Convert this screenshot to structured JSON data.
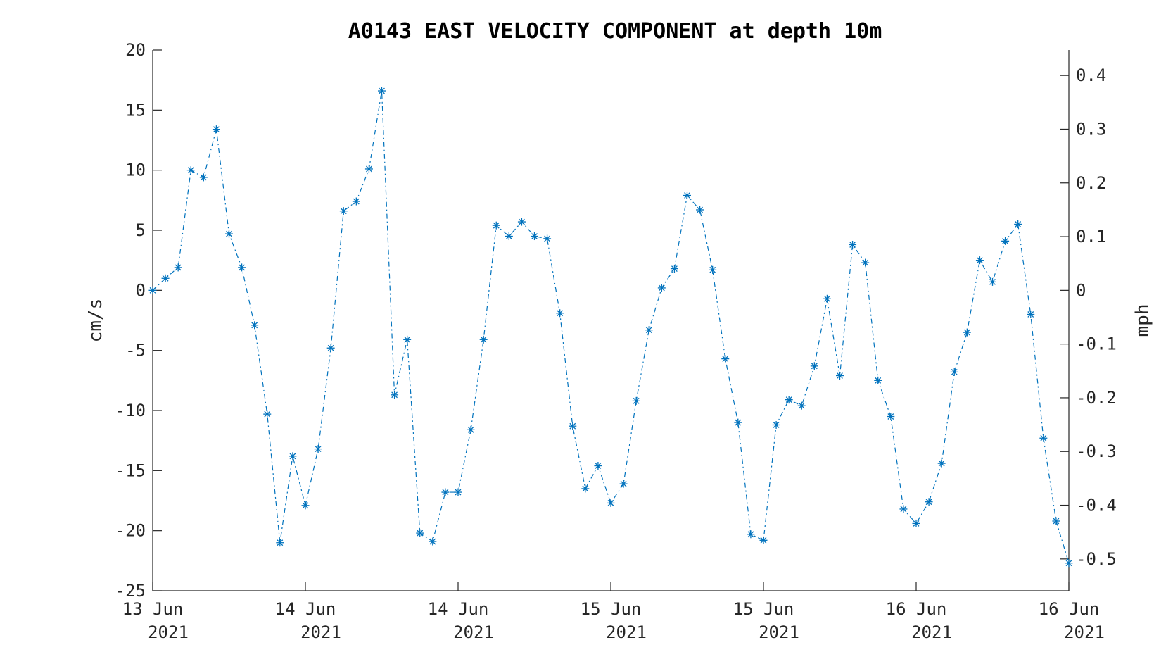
{
  "chart_data": {
    "type": "line",
    "title": "A0143 EAST VELOCITY COMPONENT at depth 10m",
    "ylabel": "cm/s",
    "ylabel_right": "mph",
    "ylim": [
      -25,
      20
    ],
    "ylim_right_mph": [
      -0.5592,
      0.4474
    ],
    "yticks": [
      "20",
      "15",
      "10",
      "5",
      "0",
      "-5",
      "-10",
      "-15",
      "-20",
      "-25"
    ],
    "yticks_right": [
      "0.4",
      "0.3",
      "0.2",
      "0.1",
      "0",
      "-0.1",
      "-0.2",
      "-0.3",
      "-0.4",
      "-0.5"
    ],
    "xticks": [
      {
        "line1": "13 Jun",
        "line2": "2021"
      },
      {
        "line1": "14 Jun",
        "line2": "2021"
      },
      {
        "line1": "14 Jun",
        "line2": "2021"
      },
      {
        "line1": "15 Jun",
        "line2": "2021"
      },
      {
        "line1": "15 Jun",
        "line2": "2021"
      },
      {
        "line1": "16 Jun",
        "line2": "2021"
      },
      {
        "line1": "16 Jun",
        "line2": "2021"
      }
    ],
    "grid": false,
    "series_color": "#0072bd",
    "line_style": "dash-dot",
    "marker": "asterisk",
    "series": [
      {
        "values": [
          0.0,
          1.0,
          1.9,
          10.0,
          9.4,
          13.4,
          4.7,
          1.9,
          -2.9,
          -10.3,
          -21.0,
          -13.8,
          -17.9,
          -13.2,
          -4.8,
          6.6,
          7.4,
          10.1,
          16.6,
          -8.7,
          -4.1,
          -20.2,
          -20.9,
          -16.8,
          -16.8,
          -11.6,
          -4.1,
          5.4,
          4.5,
          5.7,
          4.5,
          4.3,
          -1.9,
          -11.3,
          -16.5,
          -14.6,
          -17.7,
          -16.1,
          -9.2,
          -3.3,
          0.2,
          1.8,
          7.9,
          6.7,
          1.7,
          -5.7,
          -11.0,
          -20.3,
          -20.8,
          -11.2,
          -9.1,
          -9.6,
          -6.3,
          -0.7,
          -7.1,
          3.8,
          2.3,
          -7.5,
          -10.5,
          -18.2,
          -19.4,
          -17.6,
          -14.4,
          -6.8,
          -3.5,
          2.5,
          0.7,
          4.1,
          5.5,
          -2.0,
          -12.3,
          -19.2,
          -22.7
        ]
      }
    ]
  }
}
